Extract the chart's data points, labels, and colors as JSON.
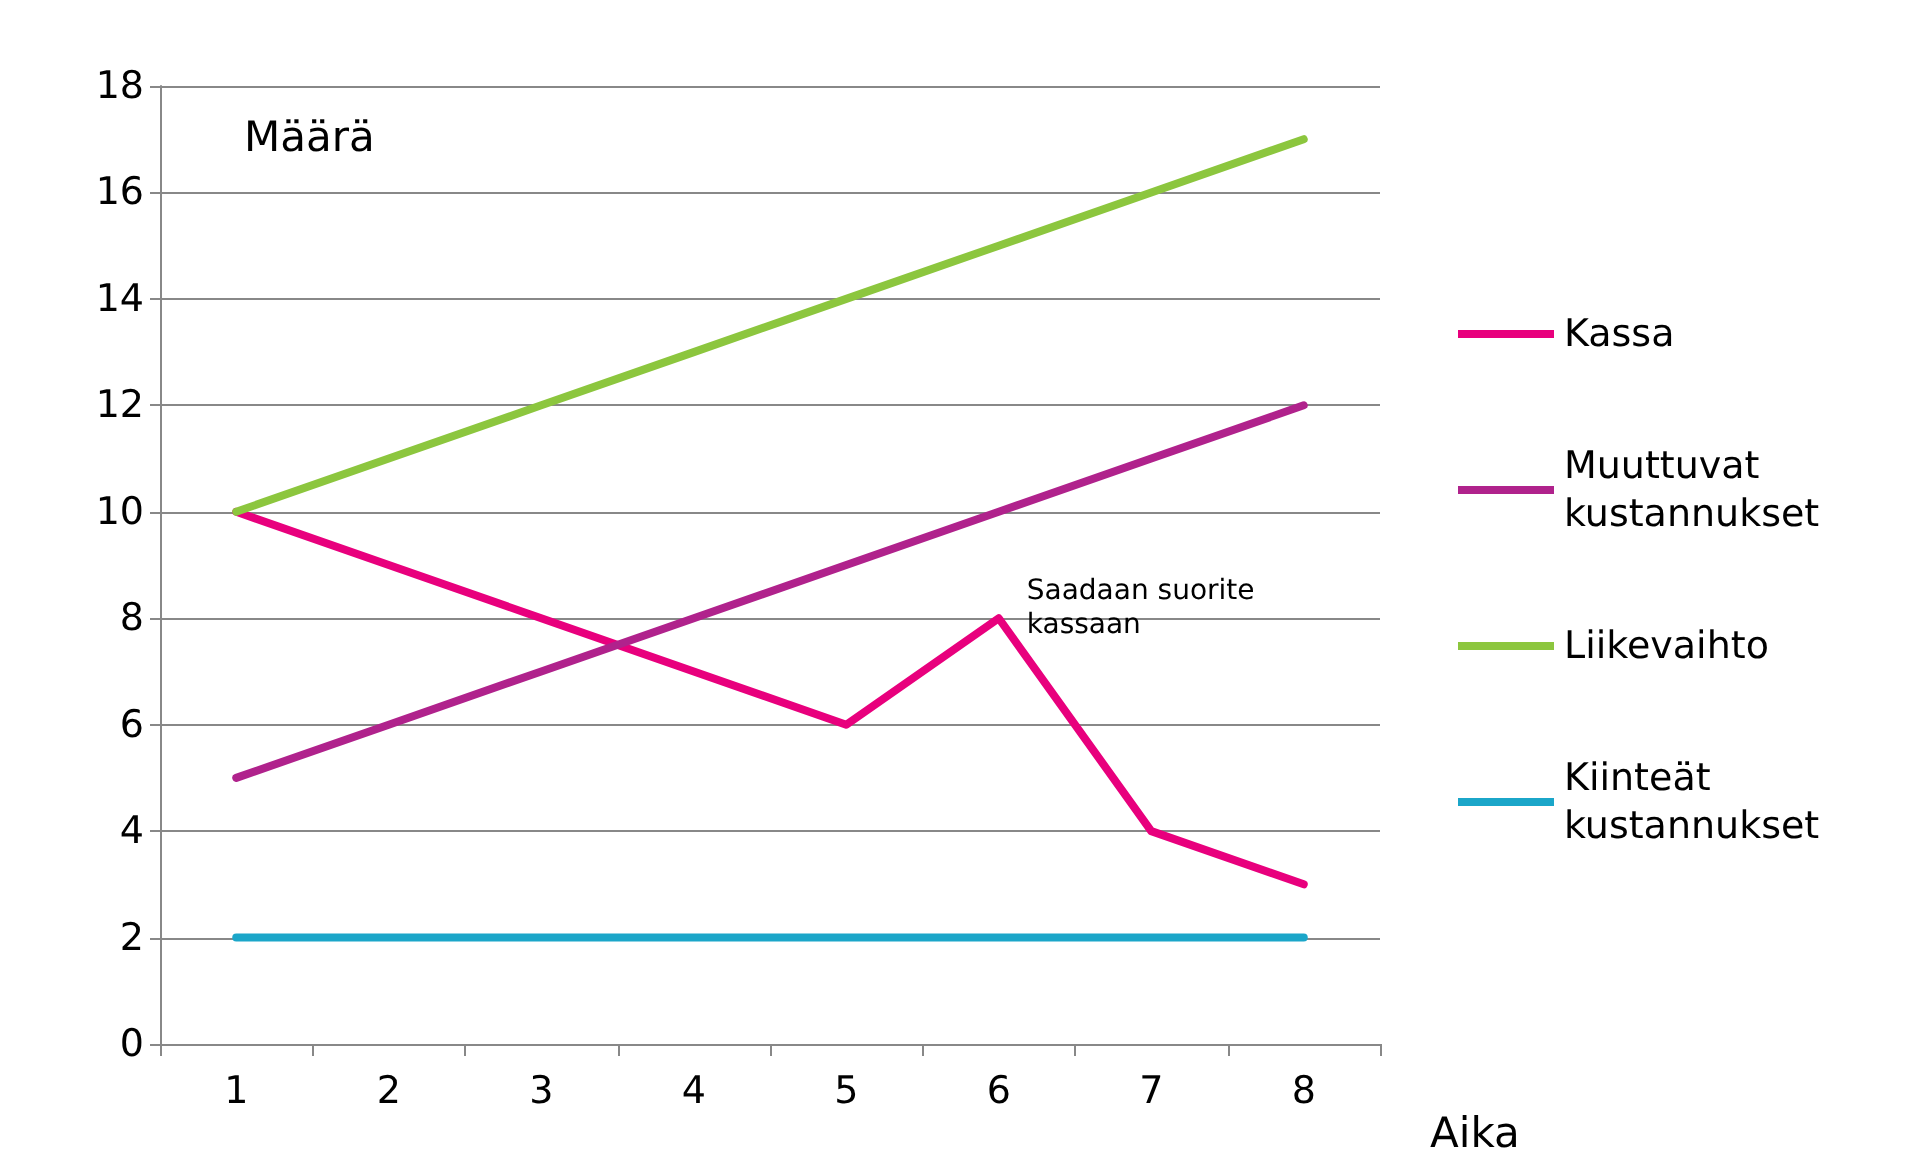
{
  "chart_data": {
    "type": "line",
    "xlabel": "Aika",
    "ylabel": "Määrä",
    "categories": [
      "1",
      "2",
      "3",
      "4",
      "5",
      "6",
      "7",
      "8"
    ],
    "series": [
      {
        "name": "Kassa",
        "color": "#e8007d",
        "values": [
          10,
          9,
          8,
          7,
          6,
          8,
          4,
          3
        ]
      },
      {
        "name": "Muuttuvat kustannukset",
        "color": "#b0228c",
        "values": [
          5,
          6,
          7,
          8,
          9,
          10,
          11,
          12
        ]
      },
      {
        "name": "Liikevaihto",
        "color": "#8cc63e",
        "values": [
          10,
          11,
          12,
          13,
          14,
          15,
          16,
          17
        ]
      },
      {
        "name": "Kiinteät kustannukset",
        "color": "#1ba6c9",
        "values": [
          2,
          2,
          2,
          2,
          2,
          2,
          2,
          2
        ]
      }
    ],
    "ylim": [
      0,
      18
    ],
    "yticks": [
      0,
      2,
      4,
      6,
      8,
      10,
      12,
      14,
      16,
      18
    ],
    "grid": "y",
    "legend": "right",
    "marker": "none",
    "line_style": "solid",
    "annotations": [
      {
        "text": "Saadaan suorite kassaan",
        "x": "6",
        "y": 8
      }
    ]
  }
}
